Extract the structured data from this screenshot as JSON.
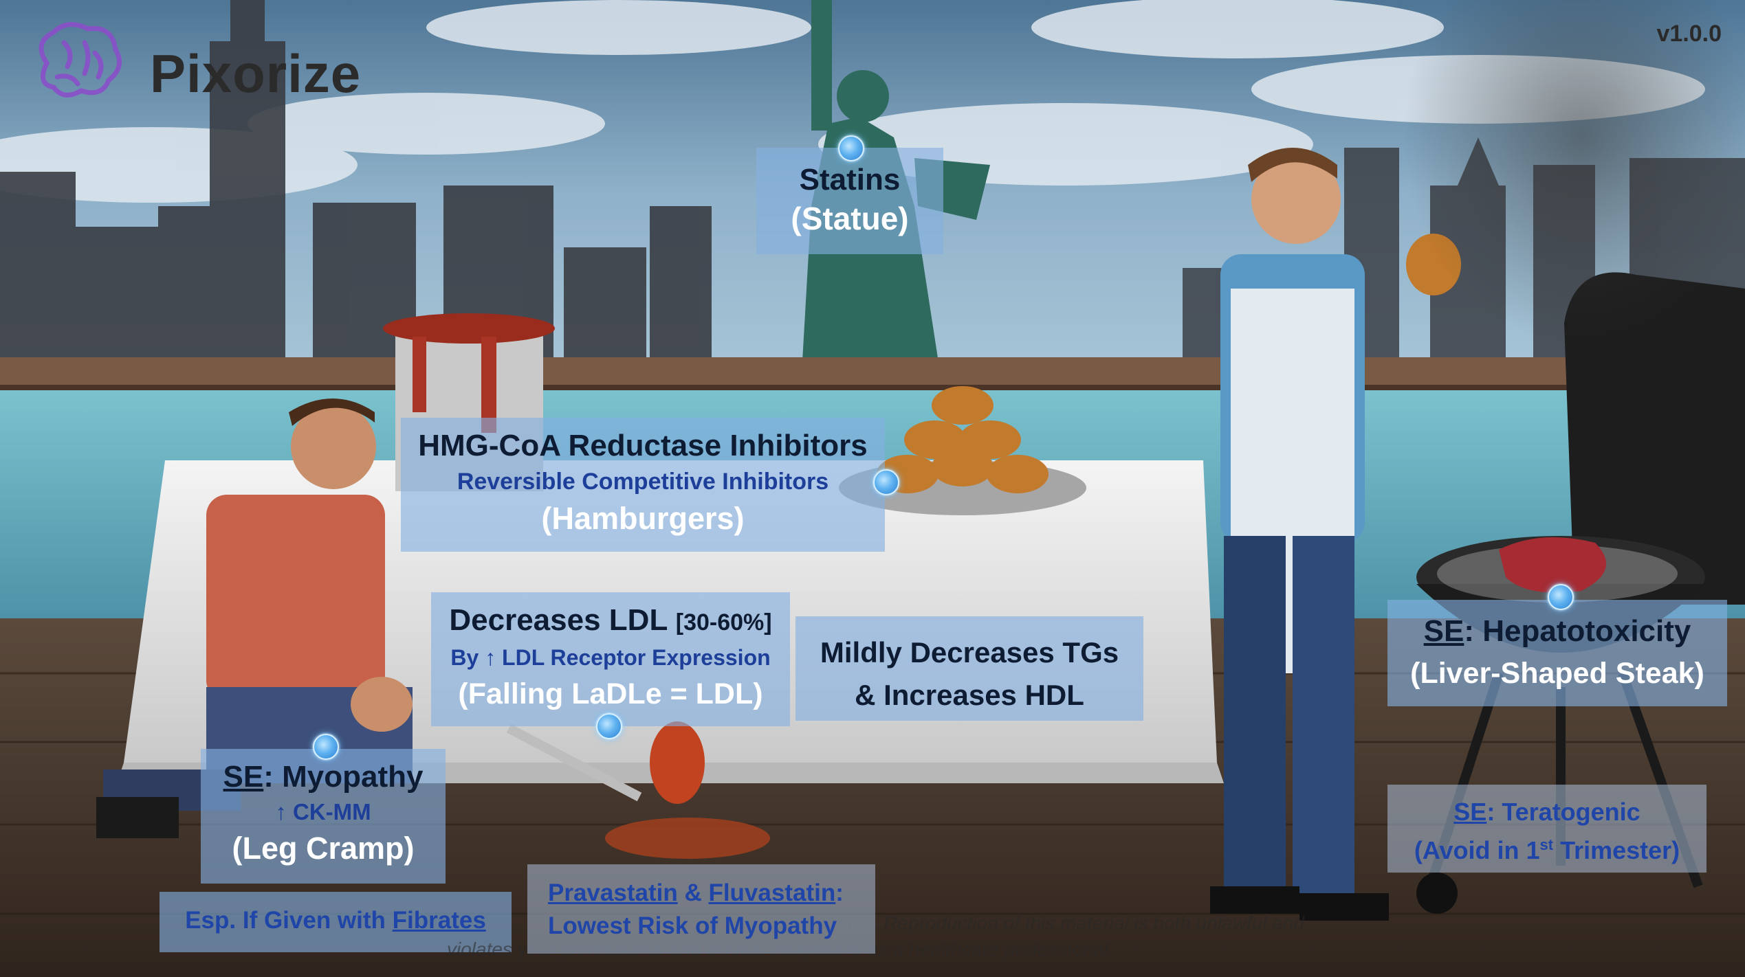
{
  "app": {
    "logo_text": "Pixorize",
    "version": "v1.0.0"
  },
  "labels": {
    "statins": {
      "line1": "Statins",
      "line2": "(Statue)"
    },
    "hmg": {
      "title": "HMG-CoA Reductase Inhibitors",
      "sub": "Reversible Competitive Inhibitors",
      "mnemonic": "(Hamburgers)"
    },
    "ldl": {
      "title": "Decreases LDL",
      "range": "[30-60%]",
      "sub": "By ↑ LDL Receptor Expression",
      "mnemonic": "(Falling LaDLe = LDL)"
    },
    "tg": {
      "line1": "Mildly Decreases TGs",
      "line2": "& Increases HDL"
    },
    "hepato": {
      "se": "SE",
      "rest": ": Hepatotoxicity",
      "mnemonic": "(Liver-Shaped Steak)"
    },
    "terato": {
      "se": "SE",
      "rest": ": Teratogenic",
      "line2_pre": "(Avoid in 1",
      "line2_sup": "st",
      "line2_post": " Trimester)"
    },
    "myopathy": {
      "se": "SE",
      "rest": ": Myopathy",
      "sub": "↑ CK-MM",
      "mnemonic": "(Leg Cramp)"
    },
    "fibrates": {
      "pre": "Esp. If Given with ",
      "link": "Fibrates"
    },
    "prava": {
      "drug1": "Pravastatin",
      "amp": " & ",
      "drug2": "Fluvastatin",
      "colon": ":",
      "line2": "Lowest Risk of Myopathy"
    }
  },
  "watermark": {
    "line1": "2022 Pixorize. Reproduction of this material is both unlawful and",
    "line2": "violates your professional and clinical obligations as a healthcare professional."
  },
  "colors": {
    "box": "#84b0e0",
    "dot": "#5fb2f0",
    "link_blue": "#1f45a8",
    "sky": "#6a8fae",
    "water": "#6fb6c8",
    "deck": "#4b3a2e"
  }
}
